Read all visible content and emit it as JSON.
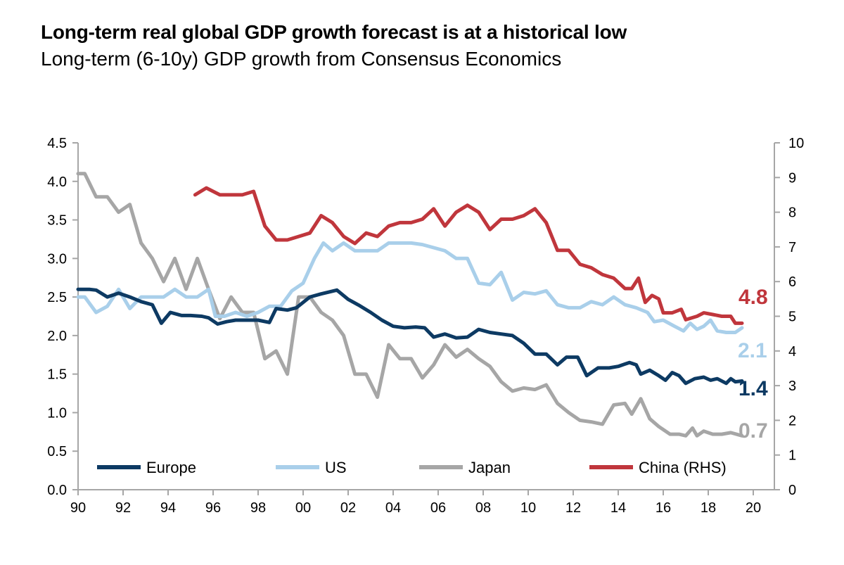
{
  "title": "Long-term real global GDP growth forecast is at a historical low",
  "subtitle": "Long-term (6-10y) GDP growth from Consensus Economics",
  "chart_data": {
    "type": "line",
    "xlabel": "",
    "ylabel": "",
    "x_ticks": [
      "90",
      "92",
      "94",
      "96",
      "98",
      "00",
      "02",
      "04",
      "06",
      "08",
      "10",
      "12",
      "14",
      "16",
      "18",
      "20"
    ],
    "x_range": [
      1990,
      2020
    ],
    "y_left": {
      "range": [
        0,
        4.5
      ],
      "ticks": [
        "0.0",
        "0.5",
        "1.0",
        "1.5",
        "2.0",
        "2.5",
        "3.0",
        "3.5",
        "4.0",
        "4.5"
      ]
    },
    "y_right": {
      "range": [
        0,
        10
      ],
      "ticks": [
        "0",
        "1",
        "2",
        "3",
        "4",
        "5",
        "6",
        "7",
        "8",
        "9",
        "10"
      ]
    },
    "legend_position": "bottom",
    "series": [
      {
        "name": "Europe",
        "color": "#0d3a63",
        "axis": "left",
        "end_label": "1.4",
        "points": [
          [
            1990.0,
            2.6
          ],
          [
            1990.5,
            2.6
          ],
          [
            1990.8,
            2.59
          ],
          [
            1991.3,
            2.5
          ],
          [
            1991.8,
            2.55
          ],
          [
            1992.3,
            2.5
          ],
          [
            1992.8,
            2.44
          ],
          [
            1993.3,
            2.4
          ],
          [
            1993.7,
            2.16
          ],
          [
            1994.1,
            2.3
          ],
          [
            1994.6,
            2.26
          ],
          [
            1995.0,
            2.26
          ],
          [
            1995.5,
            2.25
          ],
          [
            1995.8,
            2.23
          ],
          [
            1996.2,
            2.15
          ],
          [
            1996.6,
            2.18
          ],
          [
            1997.0,
            2.2
          ],
          [
            1997.5,
            2.2
          ],
          [
            1998.0,
            2.2
          ],
          [
            1998.5,
            2.17
          ],
          [
            1998.8,
            2.35
          ],
          [
            1999.3,
            2.33
          ],
          [
            1999.7,
            2.36
          ],
          [
            2000.3,
            2.5
          ],
          [
            2000.8,
            2.54
          ],
          [
            2001.5,
            2.59
          ],
          [
            2002.0,
            2.47
          ],
          [
            2002.5,
            2.39
          ],
          [
            2003.0,
            2.3
          ],
          [
            2003.5,
            2.2
          ],
          [
            2004.0,
            2.12
          ],
          [
            2004.5,
            2.1
          ],
          [
            2005.0,
            2.11
          ],
          [
            2005.4,
            2.1
          ],
          [
            2005.8,
            1.98
          ],
          [
            2006.3,
            2.02
          ],
          [
            2006.8,
            1.97
          ],
          [
            2007.3,
            1.98
          ],
          [
            2007.8,
            2.08
          ],
          [
            2008.3,
            2.04
          ],
          [
            2008.8,
            2.02
          ],
          [
            2009.3,
            2.0
          ],
          [
            2009.8,
            1.9
          ],
          [
            2010.3,
            1.76
          ],
          [
            2010.8,
            1.76
          ],
          [
            2011.3,
            1.62
          ],
          [
            2011.7,
            1.72
          ],
          [
            2012.2,
            1.72
          ],
          [
            2012.6,
            1.48
          ],
          [
            2013.1,
            1.58
          ],
          [
            2013.6,
            1.58
          ],
          [
            2014.0,
            1.6
          ],
          [
            2014.5,
            1.65
          ],
          [
            2014.8,
            1.62
          ],
          [
            2015.0,
            1.5
          ],
          [
            2015.4,
            1.55
          ],
          [
            2015.8,
            1.48
          ],
          [
            2016.1,
            1.42
          ],
          [
            2016.4,
            1.52
          ],
          [
            2016.7,
            1.48
          ],
          [
            2017.0,
            1.38
          ],
          [
            2017.4,
            1.44
          ],
          [
            2017.8,
            1.46
          ],
          [
            2018.1,
            1.42
          ],
          [
            2018.4,
            1.44
          ],
          [
            2018.8,
            1.38
          ],
          [
            2019.0,
            1.44
          ],
          [
            2019.2,
            1.4
          ],
          [
            2019.5,
            1.41
          ]
        ]
      },
      {
        "name": "US",
        "color": "#a9cfea",
        "axis": "left",
        "end_label": "2.1",
        "points": [
          [
            1990.0,
            2.5
          ],
          [
            1990.3,
            2.5
          ],
          [
            1990.8,
            2.3
          ],
          [
            1991.3,
            2.38
          ],
          [
            1991.8,
            2.6
          ],
          [
            1992.3,
            2.35
          ],
          [
            1992.8,
            2.5
          ],
          [
            1993.3,
            2.5
          ],
          [
            1993.8,
            2.5
          ],
          [
            1994.3,
            2.6
          ],
          [
            1994.8,
            2.5
          ],
          [
            1995.3,
            2.5
          ],
          [
            1995.8,
            2.6
          ],
          [
            1996.1,
            2.25
          ],
          [
            1996.5,
            2.25
          ],
          [
            1997.0,
            2.3
          ],
          [
            1997.5,
            2.25
          ],
          [
            1998.0,
            2.3
          ],
          [
            1998.5,
            2.38
          ],
          [
            1999.0,
            2.38
          ],
          [
            1999.5,
            2.58
          ],
          [
            2000.0,
            2.68
          ],
          [
            2000.5,
            3.0
          ],
          [
            2000.9,
            3.2
          ],
          [
            2001.3,
            3.1
          ],
          [
            2001.8,
            3.2
          ],
          [
            2002.3,
            3.1
          ],
          [
            2002.8,
            3.1
          ],
          [
            2003.3,
            3.1
          ],
          [
            2003.8,
            3.2
          ],
          [
            2004.3,
            3.2
          ],
          [
            2004.8,
            3.2
          ],
          [
            2005.3,
            3.18
          ],
          [
            2005.8,
            3.14
          ],
          [
            2006.3,
            3.1
          ],
          [
            2006.8,
            3.0
          ],
          [
            2007.3,
            3.0
          ],
          [
            2007.8,
            2.68
          ],
          [
            2008.3,
            2.66
          ],
          [
            2008.8,
            2.82
          ],
          [
            2009.3,
            2.46
          ],
          [
            2009.8,
            2.56
          ],
          [
            2010.3,
            2.54
          ],
          [
            2010.8,
            2.58
          ],
          [
            2011.3,
            2.4
          ],
          [
            2011.8,
            2.36
          ],
          [
            2012.3,
            2.36
          ],
          [
            2012.8,
            2.44
          ],
          [
            2013.3,
            2.4
          ],
          [
            2013.8,
            2.5
          ],
          [
            2014.3,
            2.4
          ],
          [
            2014.8,
            2.36
          ],
          [
            2015.3,
            2.3
          ],
          [
            2015.6,
            2.18
          ],
          [
            2016.0,
            2.2
          ],
          [
            2016.5,
            2.12
          ],
          [
            2016.9,
            2.06
          ],
          [
            2017.2,
            2.16
          ],
          [
            2017.5,
            2.08
          ],
          [
            2017.8,
            2.12
          ],
          [
            2018.1,
            2.2
          ],
          [
            2018.4,
            2.06
          ],
          [
            2018.8,
            2.04
          ],
          [
            2019.2,
            2.04
          ],
          [
            2019.5,
            2.1
          ]
        ]
      },
      {
        "name": "Japan",
        "color": "#a6a6a6",
        "axis": "left",
        "end_label": "0.7",
        "points": [
          [
            1990.0,
            4.1
          ],
          [
            1990.3,
            4.1
          ],
          [
            1990.8,
            3.8
          ],
          [
            1991.3,
            3.8
          ],
          [
            1991.8,
            3.6
          ],
          [
            1992.3,
            3.7
          ],
          [
            1992.8,
            3.2
          ],
          [
            1993.3,
            3.0
          ],
          [
            1993.8,
            2.7
          ],
          [
            1994.3,
            3.0
          ],
          [
            1994.8,
            2.6
          ],
          [
            1995.3,
            3.0
          ],
          [
            1995.8,
            2.6
          ],
          [
            1996.3,
            2.22
          ],
          [
            1996.8,
            2.5
          ],
          [
            1997.3,
            2.3
          ],
          [
            1997.8,
            2.3
          ],
          [
            1998.3,
            1.7
          ],
          [
            1998.8,
            1.8
          ],
          [
            1999.3,
            1.5
          ],
          [
            1999.8,
            2.5
          ],
          [
            2000.3,
            2.5
          ],
          [
            2000.8,
            2.3
          ],
          [
            2001.3,
            2.2
          ],
          [
            2001.8,
            2.0
          ],
          [
            2002.3,
            1.5
          ],
          [
            2002.8,
            1.5
          ],
          [
            2003.3,
            1.2
          ],
          [
            2003.8,
            1.88
          ],
          [
            2004.3,
            1.7
          ],
          [
            2004.8,
            1.7
          ],
          [
            2005.3,
            1.45
          ],
          [
            2005.8,
            1.62
          ],
          [
            2006.3,
            1.88
          ],
          [
            2006.8,
            1.72
          ],
          [
            2007.3,
            1.82
          ],
          [
            2007.8,
            1.7
          ],
          [
            2008.3,
            1.6
          ],
          [
            2008.8,
            1.4
          ],
          [
            2009.3,
            1.28
          ],
          [
            2009.8,
            1.32
          ],
          [
            2010.3,
            1.3
          ],
          [
            2010.8,
            1.36
          ],
          [
            2011.3,
            1.12
          ],
          [
            2011.8,
            1.0
          ],
          [
            2012.3,
            0.9
          ],
          [
            2012.8,
            0.88
          ],
          [
            2013.3,
            0.85
          ],
          [
            2013.8,
            1.1
          ],
          [
            2014.3,
            1.12
          ],
          [
            2014.6,
            0.98
          ],
          [
            2015.0,
            1.18
          ],
          [
            2015.4,
            0.92
          ],
          [
            2015.8,
            0.82
          ],
          [
            2016.3,
            0.72
          ],
          [
            2016.7,
            0.72
          ],
          [
            2017.0,
            0.7
          ],
          [
            2017.3,
            0.8
          ],
          [
            2017.5,
            0.7
          ],
          [
            2017.8,
            0.76
          ],
          [
            2018.2,
            0.72
          ],
          [
            2018.6,
            0.72
          ],
          [
            2019.0,
            0.74
          ],
          [
            2019.5,
            0.7
          ]
        ]
      },
      {
        "name": "China (RHS)",
        "color": "#c0363c",
        "axis": "right",
        "end_label": "4.8",
        "points": [
          [
            1995.2,
            8.5
          ],
          [
            1995.7,
            8.7
          ],
          [
            1996.3,
            8.5
          ],
          [
            1996.8,
            8.5
          ],
          [
            1997.3,
            8.5
          ],
          [
            1997.8,
            8.6
          ],
          [
            1998.3,
            7.6
          ],
          [
            1998.8,
            7.2
          ],
          [
            1999.3,
            7.2
          ],
          [
            1999.8,
            7.3
          ],
          [
            2000.3,
            7.4
          ],
          [
            2000.8,
            7.9
          ],
          [
            2001.3,
            7.7
          ],
          [
            2001.8,
            7.3
          ],
          [
            2002.3,
            7.1
          ],
          [
            2002.8,
            7.4
          ],
          [
            2003.3,
            7.3
          ],
          [
            2003.8,
            7.6
          ],
          [
            2004.3,
            7.7
          ],
          [
            2004.8,
            7.7
          ],
          [
            2005.3,
            7.8
          ],
          [
            2005.8,
            8.1
          ],
          [
            2006.3,
            7.6
          ],
          [
            2006.8,
            8.0
          ],
          [
            2007.3,
            8.2
          ],
          [
            2007.8,
            8.0
          ],
          [
            2008.3,
            7.5
          ],
          [
            2008.8,
            7.8
          ],
          [
            2009.3,
            7.8
          ],
          [
            2009.8,
            7.9
          ],
          [
            2010.3,
            8.1
          ],
          [
            2010.8,
            7.7
          ],
          [
            2011.3,
            6.9
          ],
          [
            2011.8,
            6.9
          ],
          [
            2012.3,
            6.5
          ],
          [
            2012.8,
            6.4
          ],
          [
            2013.3,
            6.2
          ],
          [
            2013.8,
            6.1
          ],
          [
            2014.3,
            5.8
          ],
          [
            2014.6,
            5.8
          ],
          [
            2014.9,
            6.1
          ],
          [
            2015.2,
            5.4
          ],
          [
            2015.5,
            5.6
          ],
          [
            2015.8,
            5.5
          ],
          [
            2016.0,
            5.1
          ],
          [
            2016.4,
            5.1
          ],
          [
            2016.8,
            5.2
          ],
          [
            2017.0,
            4.9
          ],
          [
            2017.5,
            5.0
          ],
          [
            2017.8,
            5.1
          ],
          [
            2018.2,
            5.05
          ],
          [
            2018.6,
            5.0
          ],
          [
            2019.0,
            5.0
          ],
          [
            2019.2,
            4.8
          ],
          [
            2019.5,
            4.8
          ]
        ]
      }
    ]
  }
}
